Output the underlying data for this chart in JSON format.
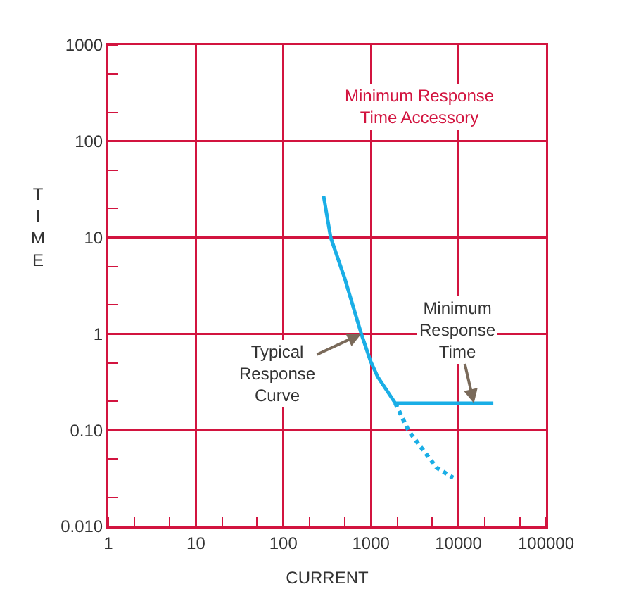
{
  "chart_data": {
    "type": "line",
    "xlabel": "CURRENT",
    "ylabel": "TIME",
    "log": "xy",
    "grid": true,
    "marker": "none",
    "xlim": [
      1,
      100000
    ],
    "xticks": [
      1,
      10,
      100,
      1000,
      10000,
      100000
    ],
    "ylim": [
      0.01,
      1000
    ],
    "yticks": [
      {
        "value": 0.01,
        "label": "0.010"
      },
      {
        "value": 0.1,
        "label": "0.10"
      },
      1,
      10,
      100,
      1000
    ],
    "series": [
      {
        "color": "#1aaee6",
        "line_style": "solid",
        "x": [
          288,
          347,
          500,
          776,
          990,
          1190,
          1900,
          25000
        ],
        "values": [
          27,
          10,
          3.8,
          1,
          0.52,
          0.36,
          0.19,
          0.19
        ]
      },
      {
        "color": "#1aaee6",
        "line_style": "dotted",
        "x": [
          1900,
          2700,
          3900,
          5600,
          8700
        ],
        "values": [
          0.19,
          0.098,
          0.063,
          0.041,
          0.032
        ]
      }
    ],
    "annotations": [
      "Minimum Response Time Accessory",
      {
        "text": "Typical Response Curve",
        "x": 776,
        "y": 1
      },
      {
        "text": "Minimum Response Time",
        "x": 15000,
        "y": 0.19
      }
    ]
  }
}
